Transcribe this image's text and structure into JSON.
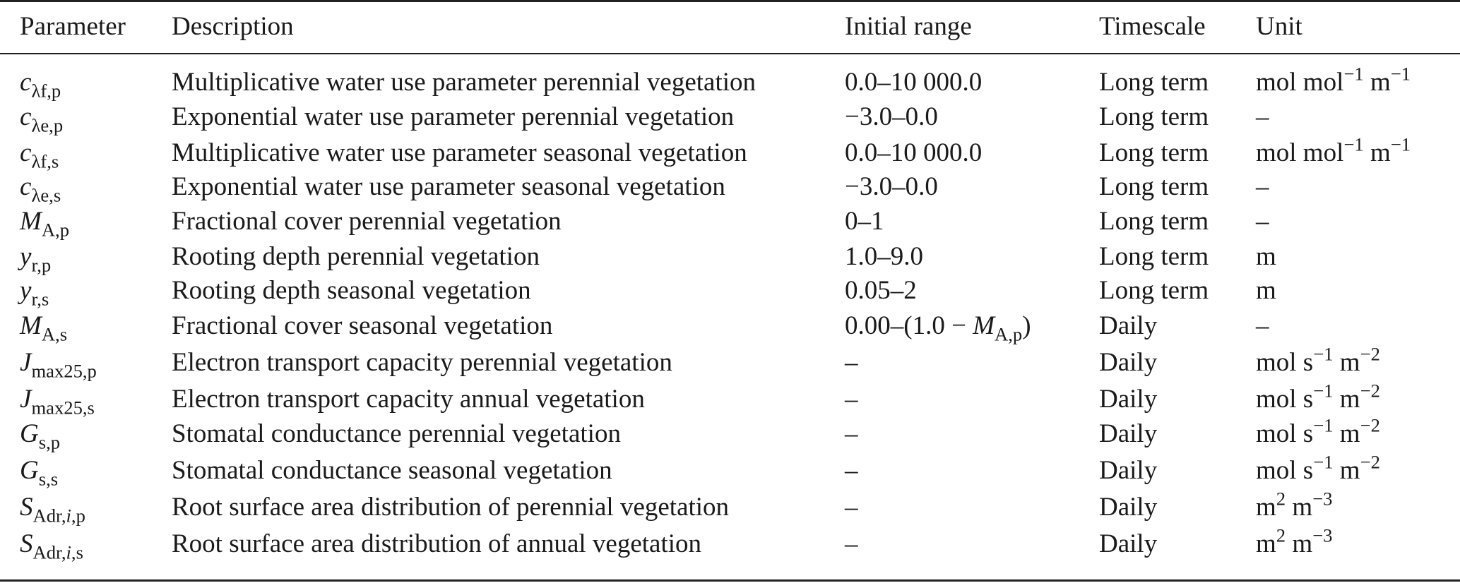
{
  "header": {
    "parameter": "Parameter",
    "description": "Description",
    "initial_range": "Initial range",
    "timescale": "Timescale",
    "unit": "Unit"
  },
  "rows": [
    {
      "sym": "c",
      "sym_sub": "λf,p",
      "sym_italic_sub": "",
      "description": "Multiplicative water use parameter perennial vegetation",
      "range": "0.0–10 000.0",
      "timescale": "Long term",
      "unit": "mol mol^−1 m^−1"
    },
    {
      "sym": "c",
      "sym_sub": "λe,p",
      "sym_italic_sub": "",
      "description": "Exponential water use parameter perennial vegetation",
      "range": "−3.0–0.0",
      "timescale": "Long term",
      "unit": "–"
    },
    {
      "sym": "c",
      "sym_sub": "λf,s",
      "sym_italic_sub": "",
      "description": "Multiplicative water use parameter seasonal vegetation",
      "range": "0.0–10 000.0",
      "timescale": "Long term",
      "unit": "mol mol^−1 m^−1"
    },
    {
      "sym": "c",
      "sym_sub": "λe,s",
      "sym_italic_sub": "",
      "description": "Exponential water use parameter seasonal vegetation",
      "range": "−3.0–0.0",
      "timescale": "Long term",
      "unit": "–"
    },
    {
      "sym": "M",
      "sym_sub": "A,p",
      "sym_italic_sub": "",
      "description": "Fractional cover perennial vegetation",
      "range": "0–1",
      "timescale": "Long term",
      "unit": "–"
    },
    {
      "sym": "y",
      "sym_sub": "r,p",
      "sym_italic_sub": "",
      "description": "Rooting depth perennial vegetation",
      "range": "1.0–9.0",
      "timescale": "Long term",
      "unit": "m"
    },
    {
      "sym": "y",
      "sym_sub": "r,s",
      "sym_italic_sub": "",
      "description": "Rooting depth seasonal vegetation",
      "range": "0.05–2",
      "timescale": "Long term",
      "unit": "m"
    },
    {
      "sym": "M",
      "sym_sub": "A,s",
      "sym_italic_sub": "",
      "description": "Fractional cover seasonal vegetation",
      "range": "0.00–(1.0 − M_A,p)",
      "timescale": "Daily",
      "unit": "–"
    },
    {
      "sym": "J",
      "sym_sub": "max25,p",
      "sym_italic_sub": "",
      "description": "Electron transport capacity perennial vegetation",
      "range": "–",
      "timescale": "Daily",
      "unit": "mol s^−1 m^−2"
    },
    {
      "sym": "J",
      "sym_sub": "max25,s",
      "sym_italic_sub": "",
      "description": "Electron transport capacity annual vegetation",
      "range": "–",
      "timescale": "Daily",
      "unit": "mol s^−1 m^−2"
    },
    {
      "sym": "G",
      "sym_sub": "s,p",
      "sym_italic_sub": "",
      "description": "Stomatal conductance perennial vegetation",
      "range": "–",
      "timescale": "Daily",
      "unit": "mol s^−1 m^−2"
    },
    {
      "sym": "G",
      "sym_sub": "s,s",
      "sym_italic_sub": "",
      "description": "Stomatal conductance seasonal vegetation",
      "range": "–",
      "timescale": "Daily",
      "unit": "mol s^−1 m^−2"
    },
    {
      "sym": "S",
      "sym_sub": "Adr,",
      "sym_italic_sub": "i",
      "sym_sub_tail": ",p",
      "description": "Root surface area distribution of perennial vegetation",
      "range": "–",
      "timescale": "Daily",
      "unit": "m^2 m^−3"
    },
    {
      "sym": "S",
      "sym_sub": "Adr,",
      "sym_italic_sub": "i",
      "sym_sub_tail": ",s",
      "description": "Root surface area distribution of annual vegetation",
      "range": "–",
      "timescale": "Daily",
      "unit": "m^2 m^−3"
    }
  ]
}
